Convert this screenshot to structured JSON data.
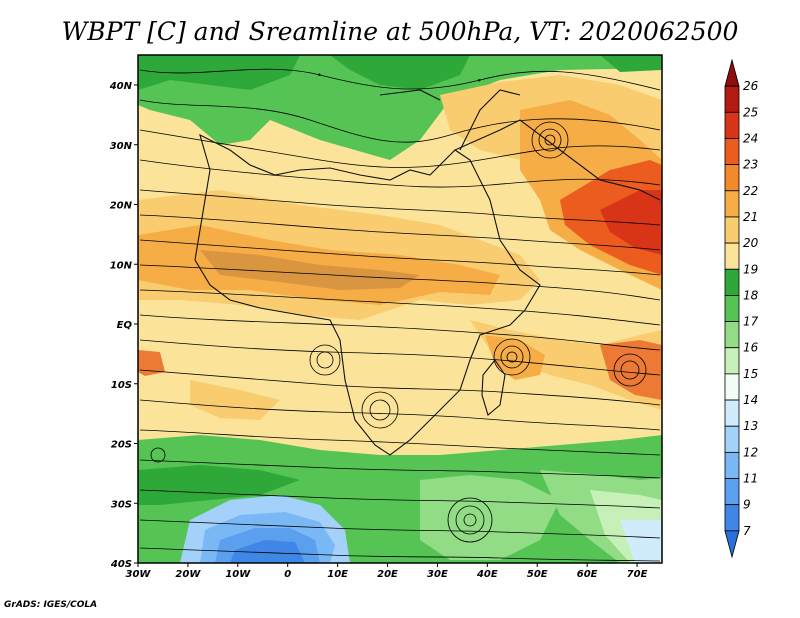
{
  "title": "WBPT [C] and Sreamline at 500hPa, VT: 2020062500",
  "credit": "GrADS: IGES/COLA",
  "map": {
    "lon_labels": [
      "30W",
      "20W",
      "10W",
      "0",
      "10E",
      "20E",
      "30E",
      "40E",
      "50E",
      "60E",
      "70E"
    ],
    "lat_labels": [
      "40N",
      "30N",
      "20N",
      "10N",
      "EQ",
      "10S",
      "20S",
      "30S",
      "40S"
    ]
  },
  "colorbar": {
    "levels": [
      "7",
      "9",
      "11",
      "12",
      "13",
      "14",
      "15",
      "16",
      "17",
      "18",
      "19",
      "20",
      "21",
      "22",
      "23",
      "24",
      "25",
      "26"
    ],
    "colors": [
      "#2b6fdb",
      "#3f87e6",
      "#5aa0ef",
      "#7ab8f5",
      "#a3d1fa",
      "#d0ecfc",
      "#f2fdf6",
      "#c6f0b8",
      "#92dc86",
      "#55c455",
      "#2fa83a",
      "#fbe49a",
      "#f9cc70",
      "#f6ad45",
      "#f28a2c",
      "#ec5c1f",
      "#d83418",
      "#b41a12",
      "#8f0e0e"
    ]
  }
}
